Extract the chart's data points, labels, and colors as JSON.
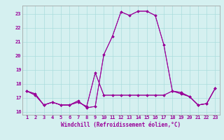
{
  "hours": [
    1,
    2,
    3,
    4,
    5,
    6,
    7,
    8,
    9,
    10,
    11,
    12,
    13,
    14,
    15,
    16,
    17,
    18,
    19,
    20,
    21,
    22,
    23
  ],
  "series": [
    [
      17.5,
      17.3,
      16.5,
      16.7,
      16.5,
      16.5,
      16.7,
      16.4,
      18.8,
      17.2,
      17.2,
      17.2,
      17.2,
      17.2,
      17.2,
      17.2,
      17.2,
      17.5,
      17.4,
      17.1,
      16.5,
      16.6,
      17.7
    ],
    [
      17.5,
      17.2,
      16.5,
      16.7,
      16.5,
      16.5,
      16.8,
      16.3,
      16.4,
      20.1,
      21.4,
      23.15,
      22.9,
      23.2,
      23.2,
      22.9,
      20.8,
      17.5,
      17.3,
      17.1,
      16.5,
      16.6,
      17.7
    ],
    [
      17.5,
      17.2,
      16.5,
      16.7,
      16.5,
      16.5,
      16.8,
      16.3,
      16.4,
      20.1,
      21.4,
      23.15,
      22.9,
      23.2,
      23.2,
      22.9,
      20.8,
      17.5,
      17.3,
      17.1,
      16.5,
      16.6,
      17.7
    ],
    [
      17.5,
      17.3,
      16.5,
      16.7,
      16.5,
      16.5,
      16.7,
      16.4,
      18.8,
      17.2,
      17.2,
      17.2,
      17.2,
      17.2,
      17.2,
      17.2,
      17.2,
      17.5,
      17.4,
      17.1,
      16.5,
      16.6,
      17.7
    ]
  ],
  "line_color": "#990099",
  "marker": "D",
  "marker_size": 1.8,
  "bg_color": "#d5f0f0",
  "grid_color": "#aadddd",
  "tick_color": "#990099",
  "xlabel": "Windchill (Refroidissement éolien,°C)",
  "xlabel_color": "#990099",
  "ylim": [
    15.8,
    23.6
  ],
  "yticks": [
    16,
    17,
    18,
    19,
    20,
    21,
    22,
    23
  ],
  "xlim": [
    0.5,
    23.5
  ],
  "xticks": [
    1,
    2,
    3,
    4,
    5,
    6,
    7,
    8,
    9,
    10,
    11,
    12,
    13,
    14,
    15,
    16,
    17,
    18,
    19,
    20,
    21,
    22,
    23
  ]
}
